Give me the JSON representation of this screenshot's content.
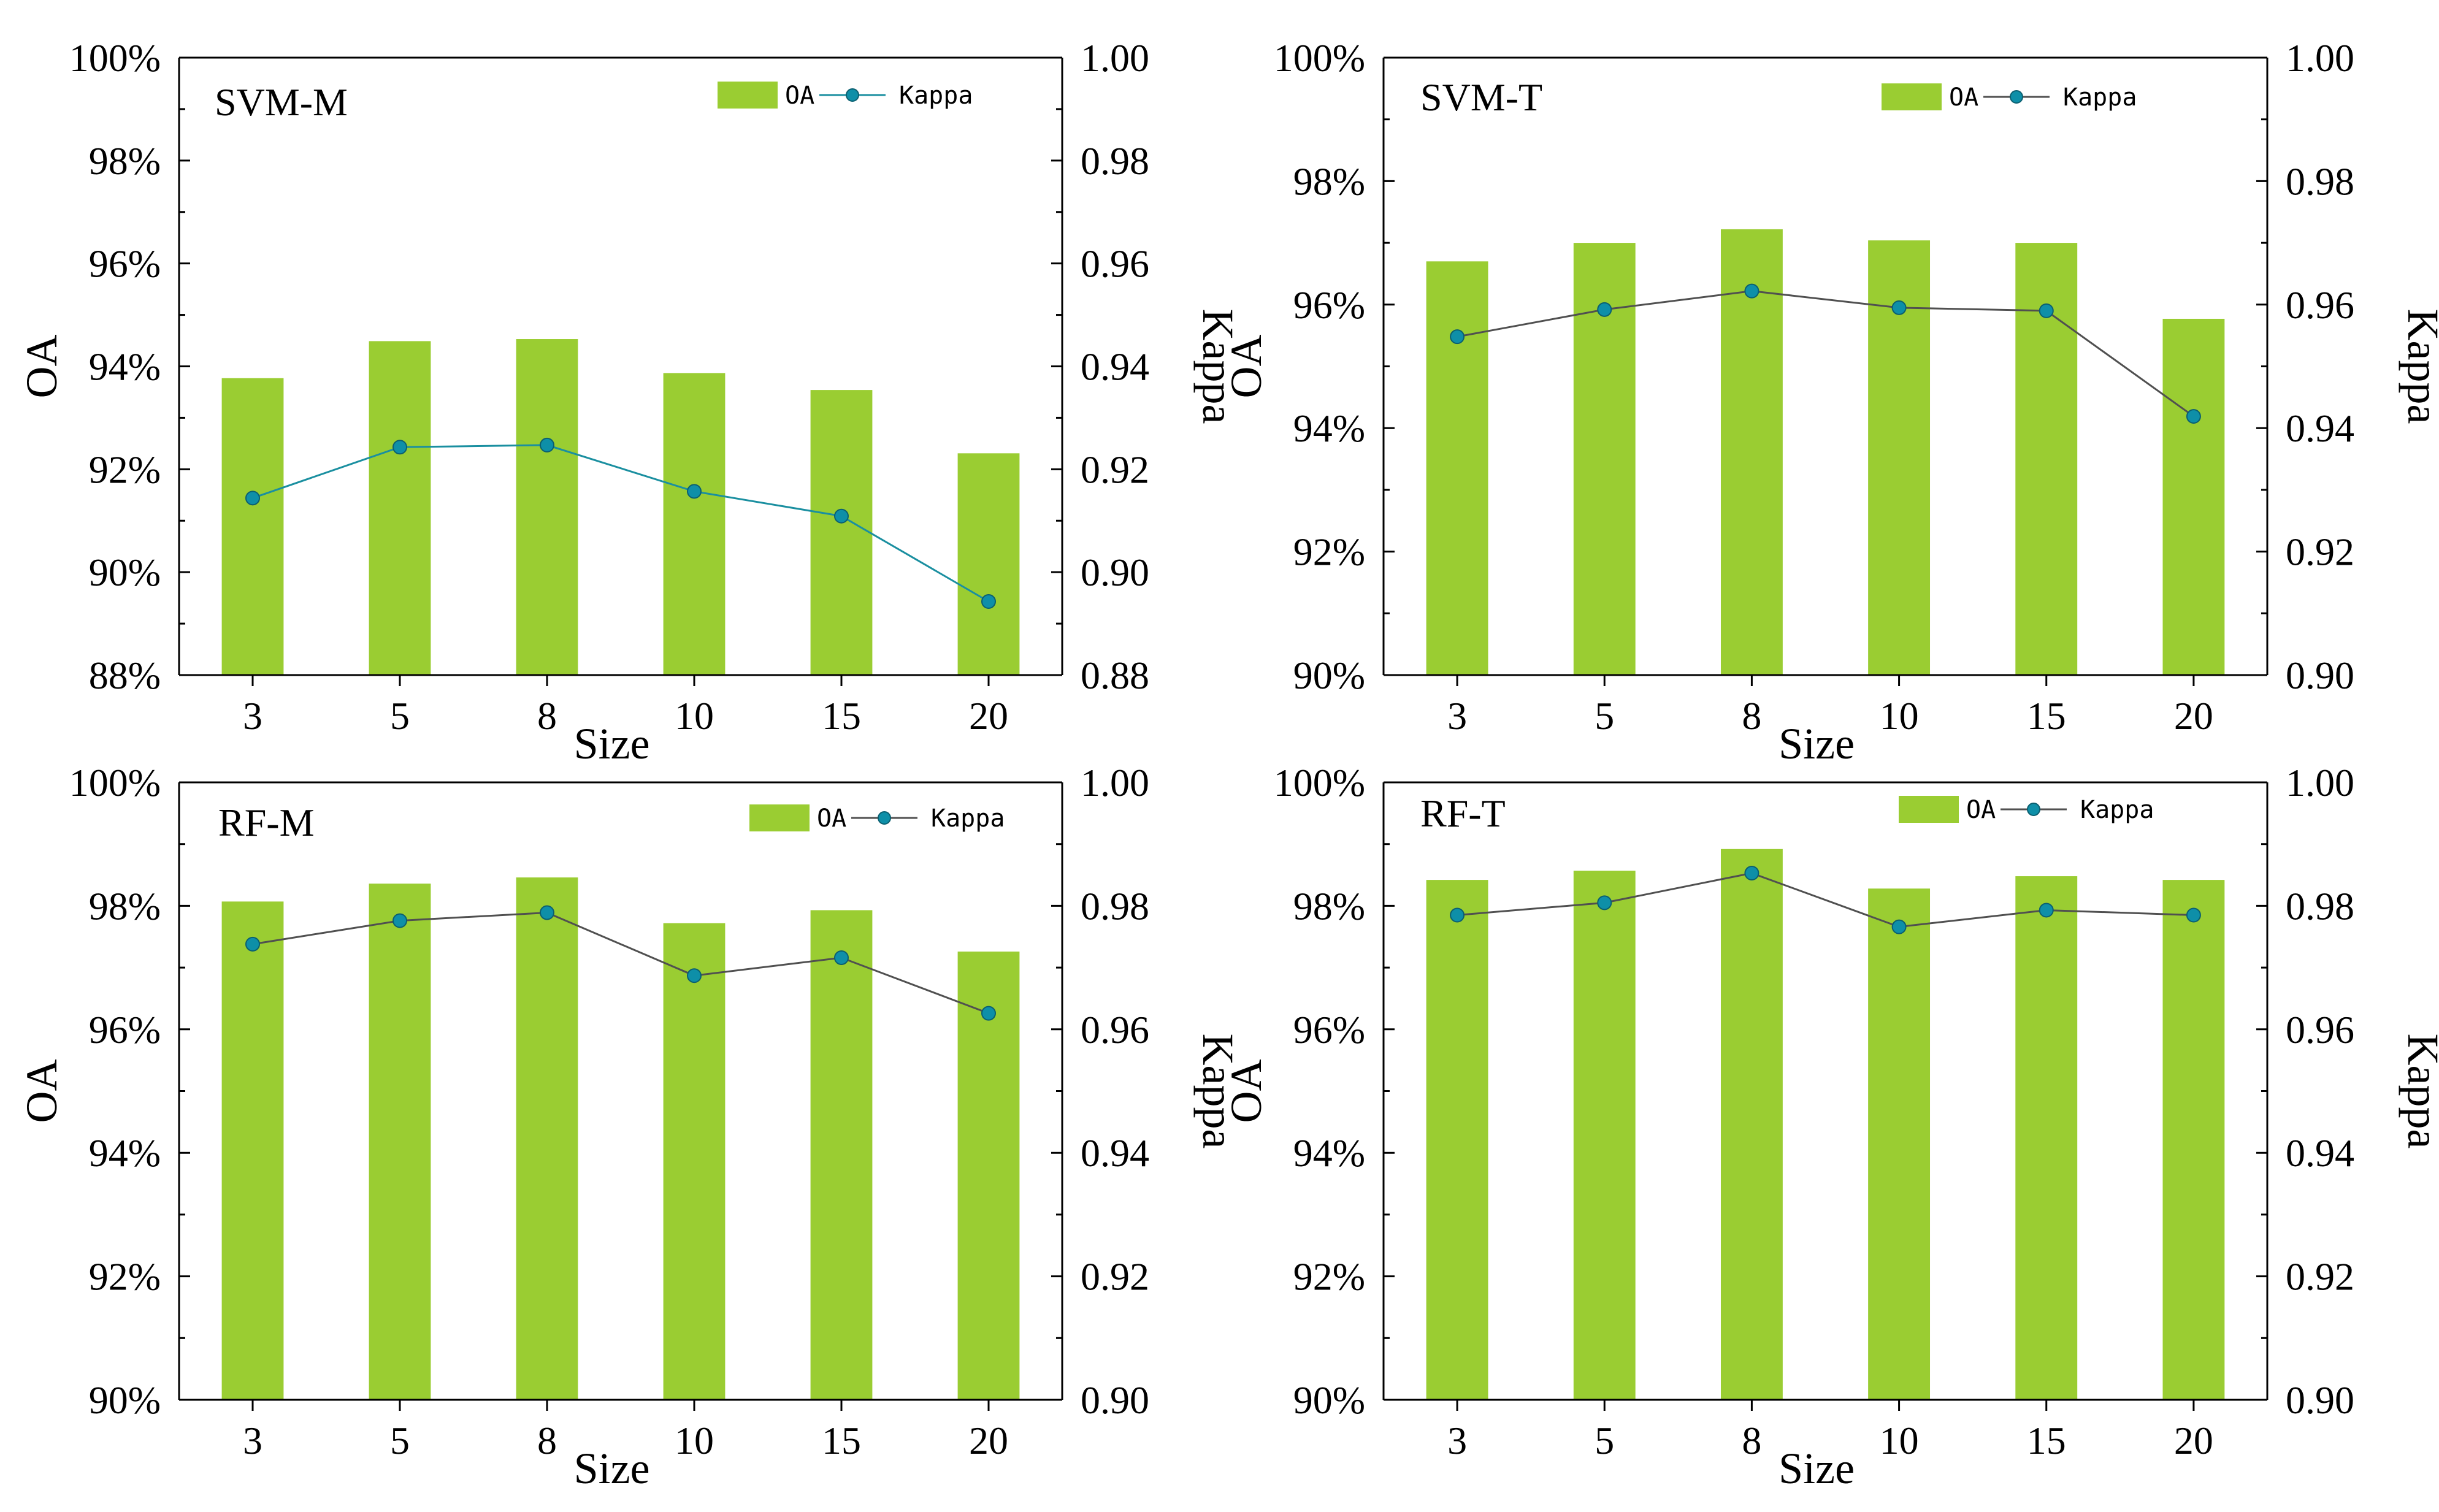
{
  "figure": {
    "colors": {
      "bar": "#9acd32",
      "line_oa_kappa_svm_m": "#1a8fa0",
      "line_default": "#505050",
      "marker": "#0e8fa8",
      "axis": "#000000"
    }
  },
  "chart_data": [
    {
      "type": "bar",
      "title": "SVM-M",
      "xlabel": "Size",
      "ylabel": "OA",
      "y2label": "Kappa",
      "categories": [
        "3",
        "5",
        "8",
        "10",
        "15",
        "20"
      ],
      "ylim": [
        88,
        100
      ],
      "yticks": [
        88,
        90,
        92,
        94,
        96,
        98,
        100
      ],
      "ytick_labels": [
        "88%",
        "90%",
        "92%",
        "94%",
        "96%",
        "98%",
        "100%"
      ],
      "y2lim": [
        0.88,
        1.0
      ],
      "y2ticks": [
        0.88,
        0.9,
        0.92,
        0.94,
        0.96,
        0.98,
        1.0
      ],
      "y2tick_labels": [
        "0.88",
        "0.90",
        "0.92",
        "0.94",
        "0.96",
        "0.98",
        "1.00"
      ],
      "series": [
        {
          "name": "OA",
          "kind": "bar",
          "axis": "left",
          "values": [
            93.77,
            94.49,
            94.53,
            93.87,
            93.54,
            92.31
          ]
        },
        {
          "name": "Kappa",
          "kind": "line",
          "axis": "right",
          "values": [
            0.9144,
            0.9243,
            0.9247,
            0.9157,
            0.9109,
            0.8943
          ]
        }
      ],
      "legend": {
        "labels": [
          "OA",
          "Kappa"
        ],
        "position": "top-right"
      }
    },
    {
      "type": "bar",
      "title": "SVM-T",
      "xlabel": "Size",
      "ylabel": "OA",
      "y2label": "Kappa",
      "categories": [
        "3",
        "5",
        "8",
        "10",
        "15",
        "20"
      ],
      "ylim": [
        90,
        100
      ],
      "yticks": [
        90,
        92,
        94,
        96,
        98,
        100
      ],
      "ytick_labels": [
        "90%",
        "92%",
        "94%",
        "96%",
        "98%",
        "100%"
      ],
      "y2lim": [
        0.9,
        1.0
      ],
      "y2ticks": [
        0.9,
        0.92,
        0.94,
        0.96,
        0.98,
        1.0
      ],
      "y2tick_labels": [
        "0.90",
        "0.92",
        "0.94",
        "0.96",
        "0.98",
        "1.00"
      ],
      "series": [
        {
          "name": "OA",
          "kind": "bar",
          "axis": "left",
          "values": [
            96.7,
            97.0,
            97.22,
            97.04,
            97.0,
            95.77
          ]
        },
        {
          "name": "Kappa",
          "kind": "line",
          "axis": "right",
          "values": [
            0.9548,
            0.9592,
            0.9622,
            0.9595,
            0.959,
            0.9419
          ]
        }
      ],
      "legend": {
        "labels": [
          "OA",
          "Kappa"
        ],
        "position": "top-right"
      }
    },
    {
      "type": "bar",
      "title": "RF-M",
      "xlabel": "Size",
      "ylabel": "OA",
      "y2label": "Kappa",
      "categories": [
        "3",
        "5",
        "8",
        "10",
        "15",
        "20"
      ],
      "ylim": [
        90,
        100
      ],
      "yticks": [
        90,
        92,
        94,
        96,
        98,
        100
      ],
      "ytick_labels": [
        "90%",
        "92%",
        "94%",
        "96%",
        "98%",
        "100%"
      ],
      "y2lim": [
        0.9,
        1.0
      ],
      "y2ticks": [
        0.9,
        0.92,
        0.94,
        0.96,
        0.98,
        1.0
      ],
      "y2tick_labels": [
        "0.90",
        "0.92",
        "0.94",
        "0.96",
        "0.98",
        "1.00"
      ],
      "series": [
        {
          "name": "OA",
          "kind": "bar",
          "axis": "left",
          "values": [
            98.07,
            98.36,
            98.46,
            97.72,
            97.93,
            97.26
          ]
        },
        {
          "name": "Kappa",
          "kind": "line",
          "axis": "right",
          "values": [
            0.9738,
            0.9776,
            0.9789,
            0.9687,
            0.9716,
            0.9626
          ]
        }
      ],
      "legend": {
        "labels": [
          "OA",
          "Kappa"
        ],
        "position": "top-right"
      }
    },
    {
      "type": "bar",
      "title": "RF-T",
      "xlabel": "Size",
      "ylabel": "OA",
      "y2label": "Kappa",
      "categories": [
        "3",
        "5",
        "8",
        "10",
        "15",
        "20"
      ],
      "ylim": [
        90,
        100
      ],
      "yticks": [
        90,
        92,
        94,
        96,
        98,
        100
      ],
      "ytick_labels": [
        "90%",
        "92%",
        "94%",
        "96%",
        "98%",
        "100%"
      ],
      "y2lim": [
        0.9,
        1.0
      ],
      "y2ticks": [
        0.9,
        0.92,
        0.94,
        0.96,
        0.98,
        1.0
      ],
      "y2tick_labels": [
        "0.90",
        "0.92",
        "0.94",
        "0.96",
        "0.98",
        "1.00"
      ],
      "series": [
        {
          "name": "OA",
          "kind": "bar",
          "axis": "left",
          "values": [
            98.42,
            98.57,
            98.92,
            98.28,
            98.48,
            98.42
          ]
        },
        {
          "name": "Kappa",
          "kind": "line",
          "axis": "right",
          "values": [
            0.9785,
            0.9805,
            0.9853,
            0.9766,
            0.9793,
            0.9785
          ]
        }
      ],
      "legend": {
        "labels": [
          "OA",
          "Kappa"
        ],
        "position": "top-right"
      }
    }
  ]
}
